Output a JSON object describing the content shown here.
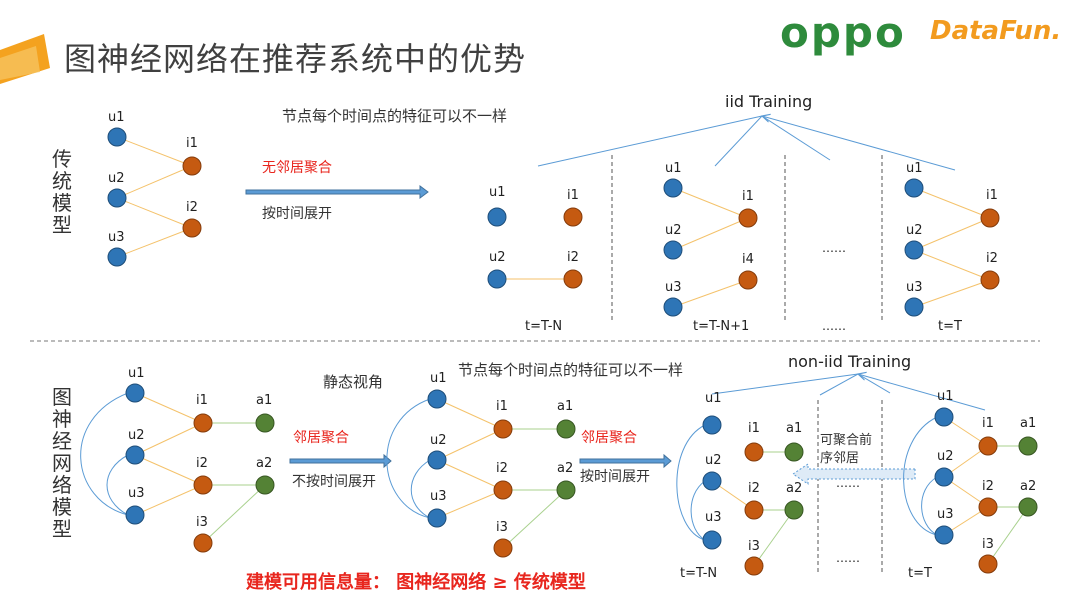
{
  "header": {
    "title": "图神经网络在推荐系统中的优势",
    "logo_oppo": "oppo",
    "logo_datafun": "DataFun."
  },
  "colors": {
    "user_node": "#2e75b6",
    "item_node": "#c55a11",
    "attr_node": "#548235",
    "user_item_edge": "#f4c26b",
    "item_attr_edge": "#a9d18e",
    "arrow": "#4472c4",
    "red_text": "#e8261e"
  },
  "sections": {
    "traditional_label": "传统模型",
    "gnn_label": "图神经网络模型"
  },
  "top": {
    "arrow_top_text": "无邻居聚合",
    "arrow_bottom_text": "按时间展开",
    "caption": "节点每个时间点的特征可以不一样",
    "training_label": "iid Training",
    "ellipsis": "……",
    "time_labels": [
      "t=T-N",
      "t=T-N+1",
      "……",
      "t=T"
    ]
  },
  "bottom": {
    "static_label": "静态视角",
    "arrow1_top_text": "邻居聚合",
    "arrow1_bottom_text": "不按时间展开",
    "caption": "节点每个时间点的特征可以不一样",
    "arrow2_top_text": "邻居聚合",
    "arrow2_bottom_text": "按时间展开",
    "training_label": "non-iid Training",
    "aggregate_text": "可聚合前序邻居",
    "ellipsis": "……",
    "time_labels": [
      "t=T-N",
      "t=T"
    ]
  },
  "conclusion": "建模可用信息量： 图神经网络 ≥ 传统模型",
  "node_labels": {
    "u1": "u1",
    "u2": "u2",
    "u3": "u3",
    "i1": "i1",
    "i2": "i2",
    "i3": "i3",
    "i4": "i4",
    "a1": "a1",
    "a2": "a2"
  }
}
